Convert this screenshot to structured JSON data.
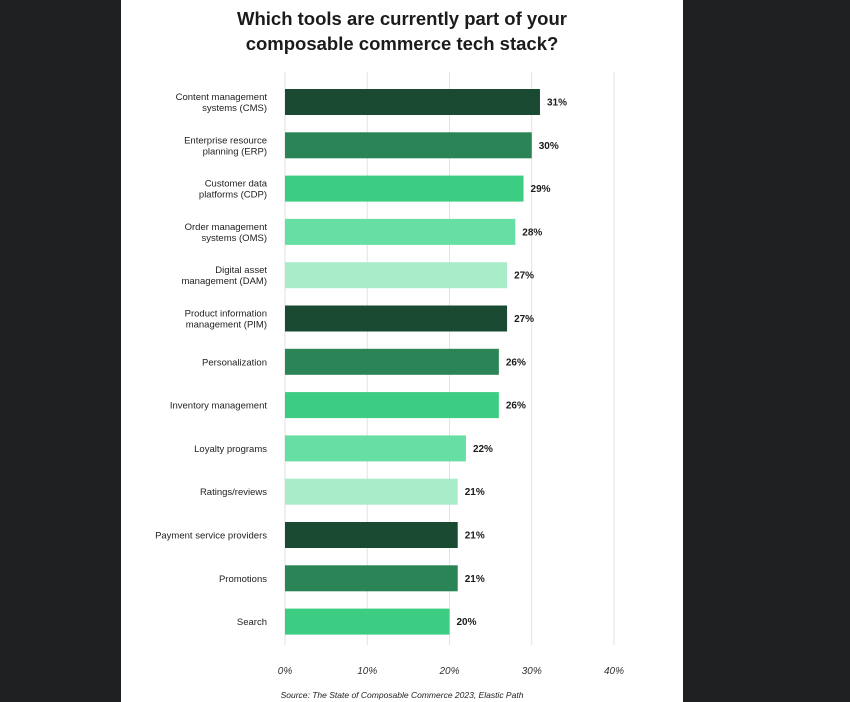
{
  "title_lines": [
    "Which tools are currently part of your",
    "composable commerce tech stack?"
  ],
  "source": "Source: The State of Composable Commerce 2023, Elastic Path",
  "colors": [
    "#1b4a32",
    "#2a8456",
    "#3ccc82",
    "#67dfa4",
    "#a8ecca"
  ],
  "chart_data": {
    "type": "bar",
    "orientation": "horizontal",
    "categories": [
      [
        "Content management",
        "systems (CMS)"
      ],
      [
        "Enterprise resource",
        "planning (ERP)"
      ],
      [
        "Customer data",
        "platforms (CDP)"
      ],
      [
        "Order management",
        "systems (OMS)"
      ],
      [
        "Digital asset",
        "management (DAM)"
      ],
      [
        "Product information",
        "management (PIM)"
      ],
      [
        "Personalization"
      ],
      [
        "Inventory management"
      ],
      [
        "Loyalty programs"
      ],
      [
        "Ratings/reviews"
      ],
      [
        "Payment service providers"
      ],
      [
        "Promotions"
      ],
      [
        "Search"
      ]
    ],
    "values": [
      31,
      30,
      29,
      28,
      27,
      27,
      26,
      26,
      22,
      21,
      21,
      21,
      20
    ],
    "value_labels": [
      "31%",
      "30%",
      "29%",
      "28%",
      "27%",
      "27%",
      "26%",
      "26%",
      "22%",
      "21%",
      "21%",
      "21%",
      "20%"
    ],
    "xlim": [
      0,
      40
    ],
    "xticks": [
      0,
      10,
      20,
      30,
      40
    ],
    "xtick_labels": [
      "0%",
      "10%",
      "20%",
      "30%",
      "40%"
    ],
    "grid": true,
    "legend": "none"
  }
}
